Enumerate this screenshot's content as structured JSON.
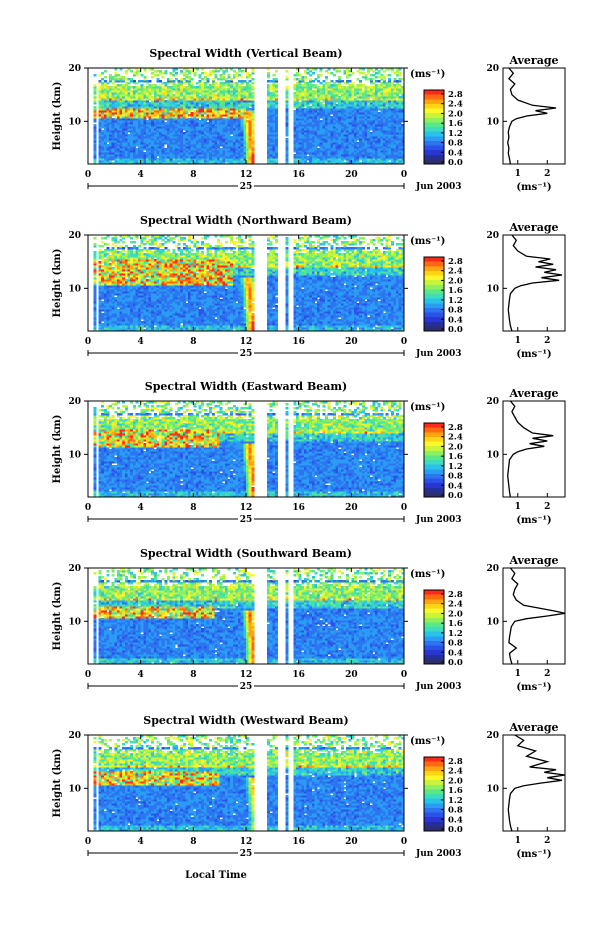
{
  "figure": {
    "xlabel_bottom": "Local Time",
    "date_label": "25",
    "month_label": "Jun 2003",
    "ylabel": "Height (km)",
    "colorbar_unit": "(ms⁻¹)",
    "colorbar_ticks": [
      "2.8",
      "2.4",
      "2.0",
      "1.6",
      "1.2",
      "0.8",
      "0.4",
      "0.0"
    ],
    "colorbar_colors": [
      "#ff2a1a",
      "#ff6a10",
      "#ffa512",
      "#ffd414",
      "#fbf72a",
      "#c8f43c",
      "#8ef05c",
      "#58e88a",
      "#3cdcbc",
      "#28c4e8",
      "#2a9cf4",
      "#2c74f0",
      "#2a52e8",
      "#2a36d4",
      "#243097",
      "#2e2e6e"
    ],
    "missing_data_hours": [
      [
        12.7,
        13.7
      ],
      [
        14.5,
        15.0
      ],
      [
        15.3,
        15.5
      ]
    ],
    "average_title": "Average",
    "average_xlabel": "(ms⁻¹)"
  },
  "chart_data": [
    {
      "type": "heatmap",
      "title": "Spectral Width (Vertical Beam)",
      "xlabel": "",
      "ylabel": "Height (km)",
      "xlim": [
        0,
        24
      ],
      "ylim": [
        2,
        20
      ],
      "x_ticks": [
        "0",
        "4",
        "8",
        "12",
        "16",
        "20",
        "0"
      ],
      "y_ticks": [
        "20",
        "10"
      ],
      "colorbar_range": [
        0.0,
        2.8
      ],
      "features": {
        "high_band_km": [
          10.8,
          12.6
        ],
        "high_band_hours": [
          0,
          12
        ],
        "plume_hour": 12.2
      },
      "average_profile": {
        "xticks": [
          "1",
          "2"
        ],
        "xlim": [
          0.5,
          2.6
        ],
        "height_km": [
          2,
          3,
          4,
          5,
          6,
          7,
          8,
          9,
          10,
          10.5,
          11,
          11.5,
          12,
          12.5,
          13,
          14,
          15,
          16,
          17,
          18,
          19,
          20
        ],
        "width_ms": [
          0.75,
          0.72,
          0.68,
          0.7,
          0.66,
          0.7,
          0.68,
          0.72,
          0.8,
          0.95,
          1.3,
          2.0,
          1.6,
          2.3,
          1.5,
          1.0,
          0.8,
          0.75,
          0.9,
          0.7,
          0.85,
          0.7
        ]
      }
    },
    {
      "type": "heatmap",
      "title": "Spectral Width (Northward Beam)",
      "xlabel": "",
      "ylabel": "Height (km)",
      "xlim": [
        0,
        24
      ],
      "ylim": [
        2,
        20
      ],
      "x_ticks": [
        "0",
        "4",
        "8",
        "12",
        "16",
        "20",
        "0"
      ],
      "y_ticks": [
        "20",
        "10"
      ],
      "colorbar_range": [
        0.0,
        2.8
      ],
      "features": {
        "high_band_km": [
          10.8,
          15.4
        ],
        "high_band_hours": [
          0,
          11
        ],
        "plume_hour": 12.2
      },
      "average_profile": {
        "xticks": [
          "1",
          "2"
        ],
        "xlim": [
          0.5,
          2.6
        ],
        "height_km": [
          2,
          3,
          4,
          5,
          6,
          7,
          8,
          9,
          10,
          10.5,
          11,
          11.5,
          12,
          12.5,
          13,
          13.5,
          14,
          14.5,
          15,
          15.5,
          16,
          17,
          18,
          19,
          20
        ],
        "width_ms": [
          0.8,
          0.75,
          0.72,
          0.7,
          0.68,
          0.7,
          0.72,
          0.75,
          0.9,
          1.1,
          1.5,
          2.4,
          1.8,
          2.5,
          1.9,
          2.3,
          1.6,
          2.2,
          1.7,
          2.1,
          1.3,
          1.0,
          0.85,
          0.95,
          0.8
        ]
      }
    },
    {
      "type": "heatmap",
      "title": "Spectral Width (Eastward Beam)",
      "xlabel": "",
      "ylabel": "Height (km)",
      "xlim": [
        0,
        24
      ],
      "ylim": [
        2,
        20
      ],
      "x_ticks": [
        "0",
        "4",
        "8",
        "12",
        "16",
        "20",
        "0"
      ],
      "y_ticks": [
        "20",
        "10"
      ],
      "colorbar_range": [
        0.0,
        2.8
      ],
      "features": {
        "high_band_km": [
          11.5,
          14.8
        ],
        "high_band_hours": [
          0,
          10
        ],
        "plume_hour": 12.3
      },
      "average_profile": {
        "xticks": [
          "1",
          "2"
        ],
        "xlim": [
          0.5,
          2.6
        ],
        "height_km": [
          2,
          3,
          4,
          5,
          6,
          7,
          8,
          9,
          10,
          10.5,
          11,
          11.5,
          12,
          12.5,
          13,
          13.5,
          14,
          15,
          16,
          17,
          18,
          19,
          20
        ],
        "width_ms": [
          0.75,
          0.72,
          0.7,
          0.68,
          0.66,
          0.68,
          0.7,
          0.72,
          0.85,
          1.0,
          1.3,
          1.9,
          1.4,
          2.0,
          1.5,
          2.2,
          1.5,
          1.2,
          1.0,
          0.9,
          0.8,
          0.9,
          0.75
        ]
      }
    },
    {
      "type": "heatmap",
      "title": "Spectral Width (Southward Beam)",
      "xlabel": "",
      "ylabel": "Height (km)",
      "xlim": [
        0,
        24
      ],
      "ylim": [
        2,
        20
      ],
      "x_ticks": [
        "0",
        "4",
        "8",
        "12",
        "16",
        "20",
        "0"
      ],
      "y_ticks": [
        "20",
        "10"
      ],
      "colorbar_range": [
        0.0,
        2.8
      ],
      "features": {
        "high_band_km": [
          10.8,
          12.8
        ],
        "high_band_hours": [
          0,
          9.5
        ],
        "plume_hour": 12.3
      },
      "average_profile": {
        "xticks": [
          "1",
          "2"
        ],
        "xlim": [
          0.5,
          2.6
        ],
        "height_km": [
          2,
          3,
          4,
          5,
          6,
          7,
          8,
          9,
          10,
          10.5,
          11,
          11.5,
          12,
          12.5,
          13,
          14,
          15,
          16,
          17,
          18,
          19,
          20
        ],
        "width_ms": [
          0.8,
          0.75,
          0.72,
          0.95,
          0.7,
          0.72,
          0.75,
          0.78,
          0.9,
          1.3,
          2.0,
          2.6,
          2.2,
          1.7,
          1.2,
          0.95,
          0.85,
          0.9,
          1.0,
          0.8,
          0.9,
          0.75
        ]
      }
    },
    {
      "type": "heatmap",
      "title": "Spectral Width (Westward Beam)",
      "xlabel": "Local Time",
      "ylabel": "Height (km)",
      "xlim": [
        0,
        24
      ],
      "ylim": [
        2,
        20
      ],
      "x_ticks": [
        "0",
        "4",
        "8",
        "12",
        "16",
        "20",
        "0"
      ],
      "y_ticks": [
        "20",
        "10"
      ],
      "colorbar_range": [
        0.0,
        2.8
      ],
      "features": {
        "high_band_km": [
          10.8,
          13.2
        ],
        "high_band_hours": [
          0,
          10
        ],
        "plume_hour": 12.6
      },
      "average_profile": {
        "xticks": [
          "1",
          "2"
        ],
        "xlim": [
          0.5,
          2.6
        ],
        "height_km": [
          2,
          3,
          4,
          5,
          6,
          7,
          8,
          9,
          10,
          10.5,
          11,
          11.5,
          12,
          12.5,
          13,
          13.5,
          14,
          15,
          16,
          17,
          18,
          19,
          20
        ],
        "width_ms": [
          0.8,
          0.75,
          0.72,
          0.7,
          0.68,
          0.7,
          0.72,
          0.75,
          0.9,
          1.2,
          1.8,
          2.5,
          2.0,
          2.6,
          1.9,
          2.3,
          1.4,
          2.0,
          1.3,
          1.6,
          1.0,
          1.2,
          0.9
        ]
      }
    }
  ]
}
